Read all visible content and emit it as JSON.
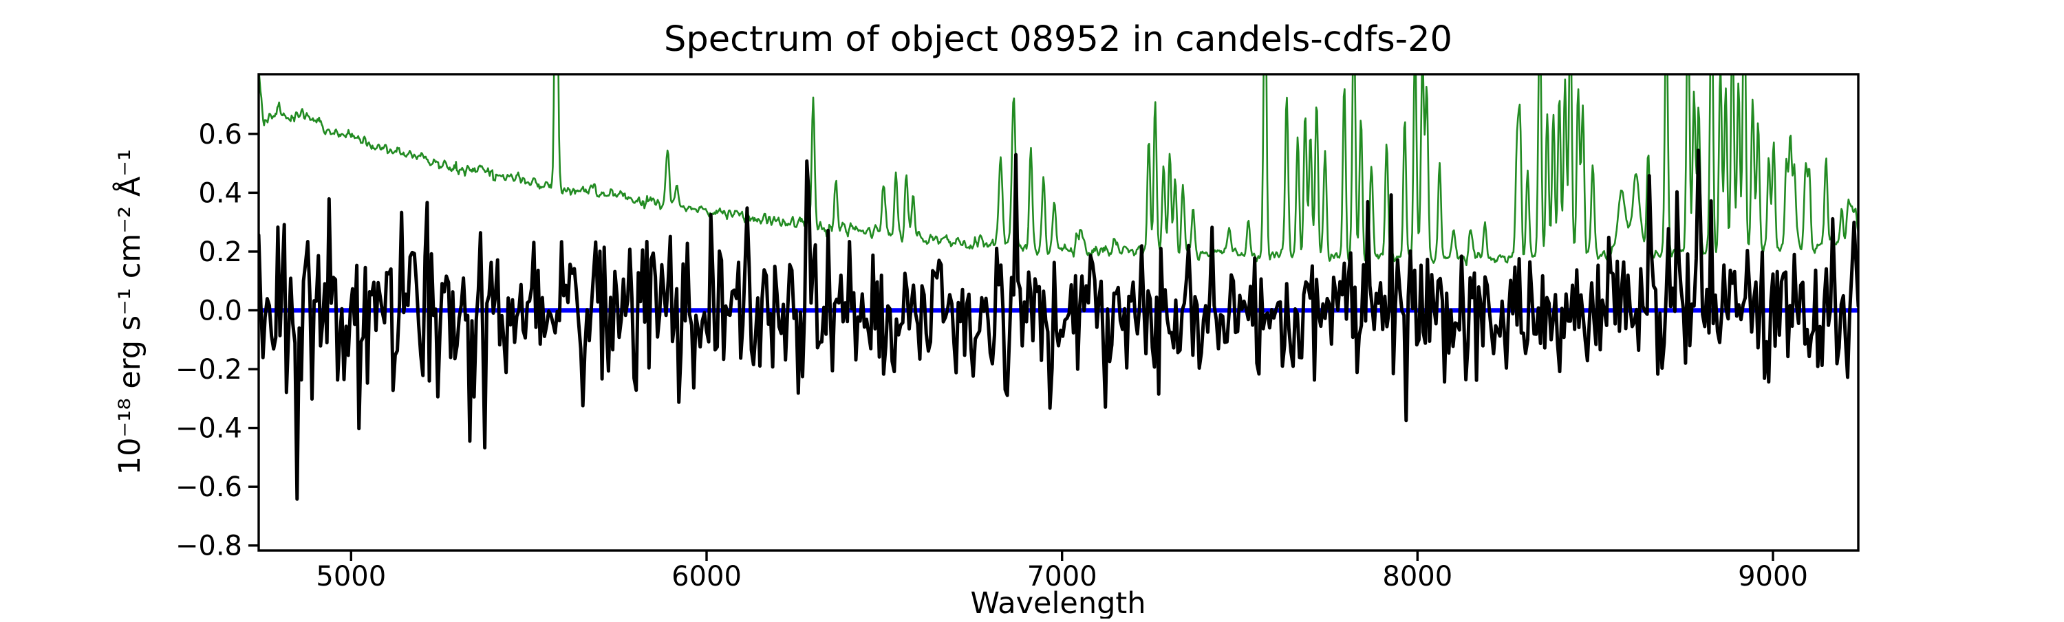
{
  "chart_data": {
    "type": "line",
    "title": "Spectrum of object 08952 in candels-cdfs-20",
    "xlabel": "Wavelength",
    "ylabel": "10⁻¹⁸ erg s⁻¹ cm⁻² Å⁻¹",
    "xlim": [
      4740,
      9240
    ],
    "ylim": [
      -0.817,
      0.803
    ],
    "xticks": [
      5000,
      6000,
      7000,
      8000,
      9000
    ],
    "xtick_labels": [
      "5000",
      "6000",
      "7000",
      "8000",
      "9000"
    ],
    "yticks": [
      -0.8,
      -0.6,
      -0.4,
      -0.2,
      0,
      0.2,
      0.4,
      0.6
    ],
    "ytick_labels": [
      "−0.8",
      "−0.6",
      "−0.4",
      "−0.2",
      "0.0",
      "0.2",
      "0.4",
      "0.6"
    ],
    "grid": false,
    "legend": false,
    "axis_color": "#000000",
    "series": [
      {
        "name": "zero-flux-line",
        "description": "horizontal reference line at zero flux",
        "type": "hline",
        "y": 0,
        "color": "#0000ff",
        "linewidth": 6.5
      },
      {
        "name": "noise-spectrum",
        "description": "sky / noise spectrum: declining continuum plus OH airglow emission-line forest, clipped at plot top",
        "type": "continuum-with-lines",
        "color": "#228b22",
        "linewidth": 2.6,
        "sample_step": 2.5,
        "seed": 77,
        "wiggle_sigma": 0.012,
        "continuum": [
          [
            4740,
            0.81
          ],
          [
            4754,
            0.625
          ],
          [
            4770,
            0.655
          ],
          [
            4790,
            0.675
          ],
          [
            4810,
            0.68
          ],
          [
            4830,
            0.665
          ],
          [
            4850,
            0.67
          ],
          [
            4870,
            0.655
          ],
          [
            4890,
            0.64
          ],
          [
            4910,
            0.645
          ],
          [
            4930,
            0.625
          ],
          [
            4960,
            0.605
          ],
          [
            5000,
            0.583
          ],
          [
            5040,
            0.568
          ],
          [
            5080,
            0.553
          ],
          [
            5120,
            0.54
          ],
          [
            5160,
            0.527
          ],
          [
            5200,
            0.515
          ],
          [
            5250,
            0.5
          ],
          [
            5300,
            0.487
          ],
          [
            5350,
            0.474
          ],
          [
            5400,
            0.461
          ],
          [
            5450,
            0.449
          ],
          [
            5500,
            0.438
          ],
          [
            5550,
            0.428
          ],
          [
            5600,
            0.418
          ],
          [
            5650,
            0.408
          ],
          [
            5700,
            0.398
          ],
          [
            5750,
            0.388
          ],
          [
            5800,
            0.378
          ],
          [
            5850,
            0.368
          ],
          [
            5900,
            0.358
          ],
          [
            5950,
            0.349
          ],
          [
            6000,
            0.34
          ],
          [
            6050,
            0.331
          ],
          [
            6100,
            0.322
          ],
          [
            6150,
            0.313
          ],
          [
            6200,
            0.305
          ],
          [
            6250,
            0.296
          ],
          [
            6300,
            0.288
          ],
          [
            6350,
            0.28
          ],
          [
            6400,
            0.272
          ],
          [
            6450,
            0.265
          ],
          [
            6500,
            0.258
          ],
          [
            6550,
            0.252
          ],
          [
            6600,
            0.246
          ],
          [
            6650,
            0.24
          ],
          [
            6700,
            0.235
          ],
          [
            6750,
            0.229
          ],
          [
            6800,
            0.224
          ],
          [
            6850,
            0.22
          ],
          [
            6900,
            0.216
          ],
          [
            6950,
            0.212
          ],
          [
            7000,
            0.209
          ],
          [
            7100,
            0.205
          ],
          [
            7200,
            0.202
          ],
          [
            7300,
            0.199
          ],
          [
            7400,
            0.196
          ],
          [
            7500,
            0.193
          ],
          [
            7600,
            0.19
          ],
          [
            7700,
            0.187
          ],
          [
            7800,
            0.183
          ],
          [
            7900,
            0.18
          ],
          [
            8000,
            0.177
          ],
          [
            8100,
            0.174
          ],
          [
            8200,
            0.176
          ],
          [
            8300,
            0.18
          ],
          [
            8400,
            0.183
          ],
          [
            8500,
            0.186
          ],
          [
            8600,
            0.189
          ],
          [
            8700,
            0.193
          ],
          [
            8800,
            0.198
          ],
          [
            8900,
            0.203
          ],
          [
            9000,
            0.21
          ],
          [
            9100,
            0.221
          ],
          [
            9200,
            0.234
          ],
          [
            9240,
            0.24
          ]
        ],
        "sky_lines": [
          [
            5577,
            1.2,
            4
          ],
          [
            5890,
            0.17,
            5
          ],
          [
            5917,
            0.07,
            4
          ],
          [
            6300,
            0.44,
            4
          ],
          [
            6364,
            0.17,
            4
          ],
          [
            6498,
            0.17,
            5
          ],
          [
            6533,
            0.21,
            4
          ],
          [
            6562,
            0.23,
            4
          ],
          [
            6581,
            0.13,
            4
          ],
          [
            6827,
            0.31,
            5
          ],
          [
            6864,
            0.52,
            5
          ],
          [
            6912,
            0.34,
            4
          ],
          [
            6948,
            0.23,
            4
          ],
          [
            6978,
            0.17,
            4
          ],
          [
            7050,
            0.06,
            8
          ],
          [
            7150,
            0.05,
            6
          ],
          [
            7244,
            0.37,
            4
          ],
          [
            7262,
            0.52,
            4
          ],
          [
            7286,
            0.29,
            4
          ],
          [
            7303,
            0.34,
            4
          ],
          [
            7318,
            0.26,
            4
          ],
          [
            7340,
            0.23,
            4
          ],
          [
            7369,
            0.15,
            4
          ],
          [
            7470,
            0.09,
            5
          ],
          [
            7524,
            0.13,
            4
          ],
          [
            7571,
            1.0,
            4
          ],
          [
            7632,
            0.55,
            4
          ],
          [
            7663,
            0.4,
            4
          ],
          [
            7684,
            0.48,
            4
          ],
          [
            7699,
            0.42,
            4
          ],
          [
            7716,
            0.52,
            4
          ],
          [
            7740,
            0.35,
            4
          ],
          [
            7794,
            0.58,
            4
          ],
          [
            7821,
            0.85,
            4
          ],
          [
            7841,
            0.48,
            4
          ],
          [
            7870,
            0.32,
            4
          ],
          [
            7913,
            0.38,
            4
          ],
          [
            7964,
            0.48,
            4
          ],
          [
            7993,
            0.75,
            4
          ],
          [
            8014,
            0.68,
            4
          ],
          [
            8026,
            0.58,
            4
          ],
          [
            8062,
            0.33,
            4
          ],
          [
            8101,
            0.12,
            5
          ],
          [
            8150,
            0.09,
            5
          ],
          [
            8190,
            0.11,
            5
          ],
          [
            8280,
            0.38,
            4
          ],
          [
            8288,
            0.45,
            4
          ],
          [
            8310,
            0.3,
            4
          ],
          [
            8344,
            0.85,
            4
          ],
          [
            8365,
            0.5,
            4
          ],
          [
            8382,
            0.48,
            4
          ],
          [
            8399,
            0.55,
            4
          ],
          [
            8415,
            0.6,
            4
          ],
          [
            8430,
            0.85,
            4
          ],
          [
            8452,
            0.55,
            4
          ],
          [
            8465,
            0.5,
            4
          ],
          [
            8493,
            0.32,
            4
          ],
          [
            8575,
            0.22,
            11
          ],
          [
            8615,
            0.26,
            11
          ],
          [
            8649,
            0.35,
            4
          ],
          [
            8700,
            0.85,
            4
          ],
          [
            8761,
            0.9,
            4
          ],
          [
            8778,
            0.55,
            4
          ],
          [
            8791,
            0.48,
            4
          ],
          [
            8827,
            0.95,
            4
          ],
          [
            8852,
            0.62,
            4
          ],
          [
            8867,
            0.56,
            4
          ],
          [
            8886,
            0.8,
            4
          ],
          [
            8903,
            0.56,
            4
          ],
          [
            8919,
            0.95,
            4
          ],
          [
            8943,
            0.52,
            4
          ],
          [
            8958,
            0.42,
            4
          ],
          [
            8988,
            0.32,
            4
          ],
          [
            9002,
            0.36,
            4
          ],
          [
            9038,
            0.32,
            4
          ],
          [
            9049,
            0.37,
            4
          ],
          [
            9060,
            0.27,
            4
          ],
          [
            9092,
            0.27,
            4
          ],
          [
            9102,
            0.24,
            4
          ],
          [
            9149,
            0.3,
            4
          ],
          [
            9193,
            0.11,
            4
          ],
          [
            9211,
            0.13,
            4
          ],
          [
            9222,
            0.12,
            4
          ],
          [
            9232,
            0.1,
            4
          ]
        ]
      },
      {
        "name": "flux-spectrum",
        "description": "observed object flux: zero-mean noise whose sigma envelope shrinks toward red, with notable positive and negative spikes",
        "type": "noise-with-spikes",
        "color": "#000000",
        "linewidth": 5,
        "sample_step": 6,
        "seed": 8952,
        "sigma_envelope": [
          [
            4740,
            0.155
          ],
          [
            5000,
            0.15
          ],
          [
            5300,
            0.14
          ],
          [
            5600,
            0.13
          ],
          [
            6000,
            0.125
          ],
          [
            6400,
            0.115
          ],
          [
            6800,
            0.11
          ],
          [
            7200,
            0.105
          ],
          [
            7600,
            0.105
          ],
          [
            8000,
            0.11
          ],
          [
            8400,
            0.115
          ],
          [
            8800,
            0.125
          ],
          [
            9240,
            0.13
          ]
        ],
        "spikes": [
          [
            4745,
            0.3,
            3
          ],
          [
            4812,
            0.33,
            3
          ],
          [
            4848,
            -0.58,
            3
          ],
          [
            4881,
            0.35,
            3
          ],
          [
            4935,
            0.3,
            3
          ],
          [
            5362,
            0.45,
            3
          ],
          [
            5420,
            -0.3,
            3
          ],
          [
            5653,
            -0.38,
            3
          ],
          [
            5924,
            -0.33,
            3
          ],
          [
            6114,
            0.32,
            3
          ],
          [
            6285,
            0.32,
            3
          ],
          [
            6530,
            -0.28,
            3
          ],
          [
            6871,
            0.48,
            3
          ],
          [
            6968,
            -0.4,
            3
          ],
          [
            7119,
            -0.32,
            3
          ],
          [
            7420,
            0.28,
            3
          ],
          [
            7861,
            0.4,
            3
          ],
          [
            7926,
            0.4,
            3
          ],
          [
            7966,
            -0.45,
            3
          ],
          [
            8652,
            0.58,
            3
          ],
          [
            8679,
            -0.48,
            3
          ],
          [
            8732,
            0.52,
            3
          ],
          [
            8790,
            0.45,
            3
          ],
          [
            8826,
            0.4,
            3
          ],
          [
            8930,
            0.38,
            3
          ],
          [
            8985,
            -0.45,
            3
          ],
          [
            9170,
            0.4,
            3
          ],
          [
            9230,
            0.38,
            3
          ]
        ]
      }
    ]
  }
}
